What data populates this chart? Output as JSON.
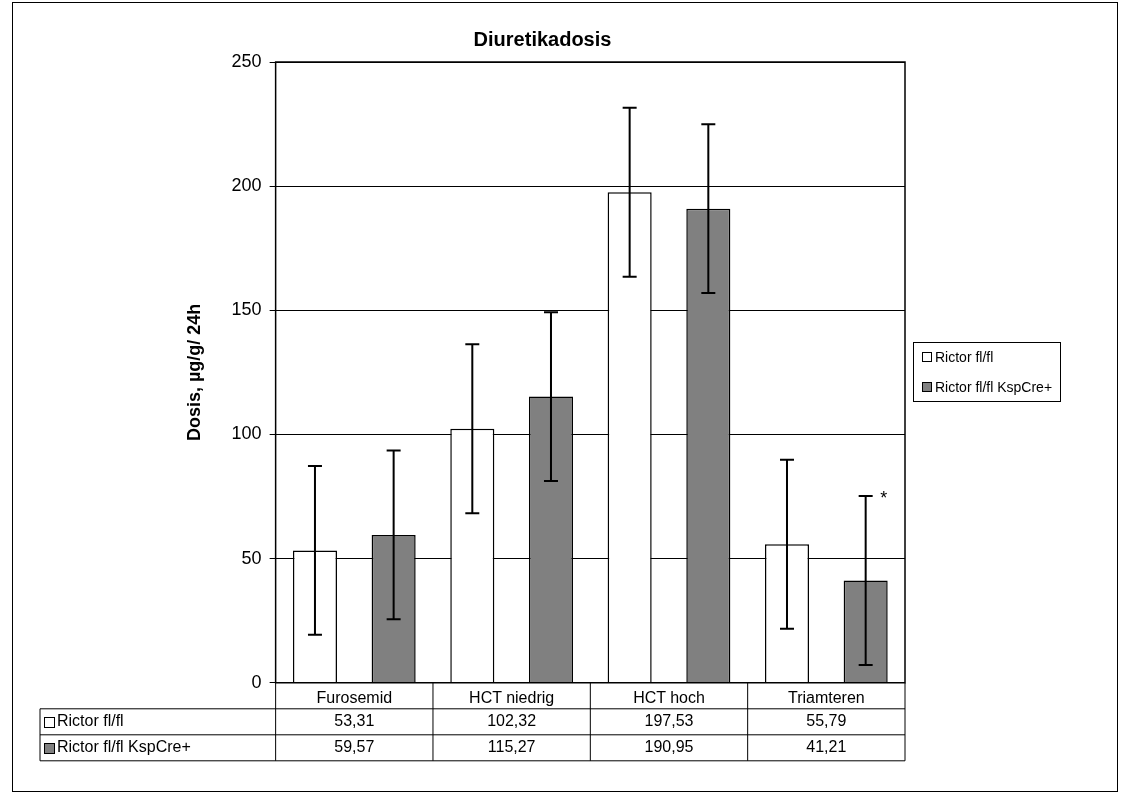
{
  "chart_data": {
    "type": "bar",
    "title": "Diuretikadosis",
    "ylabel": "Dosis, µg/g/ 24h",
    "categories": [
      "Furosemid",
      "HCT niedrig",
      "HCT hoch",
      "Triamteren"
    ],
    "series": [
      {
        "name": "Rictor fl/fl",
        "color": "#ffffff",
        "values": [
          53.31,
          102.32,
          197.53,
          55.79
        ],
        "errors": [
          34,
          34,
          34,
          34
        ],
        "value_labels": [
          "53,31",
          "102,32",
          "197,53",
          "55,79"
        ]
      },
      {
        "name": "Rictor fl/fl KspCre+",
        "color": "#808080",
        "values": [
          59.57,
          115.27,
          190.95,
          41.21
        ],
        "errors": [
          34,
          34,
          34,
          34
        ],
        "value_labels": [
          "59,57",
          "115,27",
          "190,95",
          "41,21"
        ]
      }
    ],
    "ylim": [
      0,
      250
    ],
    "yticks": [
      0,
      50,
      100,
      150,
      200,
      250
    ],
    "grid": "y",
    "legend": "right",
    "annotations": [
      "*"
    ]
  }
}
